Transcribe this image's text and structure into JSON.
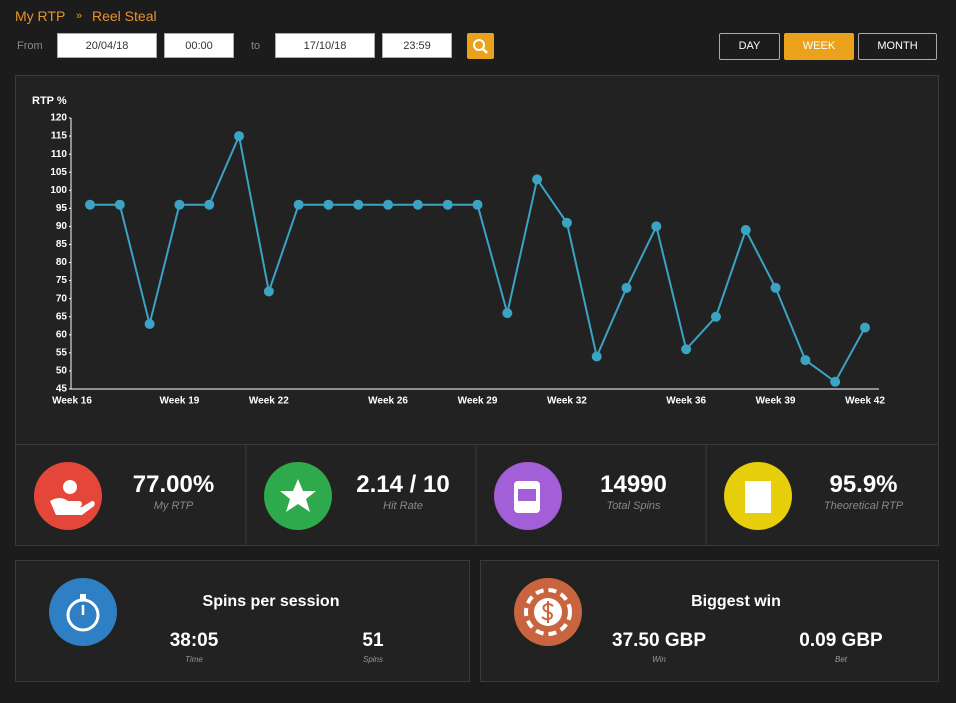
{
  "breadcrumb": {
    "root": "My RTP",
    "separator": "»",
    "game": "Reel Steal"
  },
  "filter": {
    "from_label": "From",
    "from_date": "20/04/18",
    "from_time": "00:00",
    "to_label": "to",
    "to_date": "17/10/18",
    "to_time": "23:59",
    "periods": [
      "DAY",
      "WEEK",
      "MONTH"
    ]
  },
  "chart_data": {
    "type": "line",
    "y_label": "RTP %",
    "categories": [
      "Week 16",
      null,
      null,
      "Week 19",
      null,
      null,
      "Week 22",
      null,
      null,
      null,
      "Week 26",
      null,
      null,
      "Week 29",
      null,
      null,
      "Week 32",
      null,
      null,
      null,
      "Week 36",
      null,
      null,
      "Week 39",
      null,
      null,
      "Week 42"
    ],
    "series": [
      {
        "color": "#3ba3c4",
        "values": [
          96,
          96,
          63,
          96,
          96,
          115,
          72,
          96,
          96,
          96,
          96,
          96,
          96,
          96,
          66,
          103,
          91,
          54,
          73,
          90,
          56,
          65,
          89,
          73,
          53,
          47,
          62
        ]
      }
    ],
    "ylim": [
      45,
      120
    ],
    "yticks": [
      45,
      50,
      55,
      60,
      65,
      70,
      75,
      80,
      85,
      90,
      95,
      100,
      105,
      110,
      115,
      120
    ]
  },
  "stats": [
    {
      "value": "77.00%",
      "label": "My RTP"
    },
    {
      "value": "2.14 / 10",
      "label": "Hit Rate"
    },
    {
      "value": "14990",
      "label": "Total Spins"
    },
    {
      "value": "95.9%",
      "label": "Theoretical RTP"
    }
  ],
  "session": {
    "title": "Spins per session",
    "items": [
      {
        "value": "38:05",
        "label": "Time"
      },
      {
        "value": "51",
        "label": "Spins"
      }
    ]
  },
  "biggest": {
    "title": "Biggest win",
    "items": [
      {
        "value": "37.50 GBP",
        "label": "Win"
      },
      {
        "value": "0.09 GBP",
        "label": "Bet"
      }
    ]
  }
}
